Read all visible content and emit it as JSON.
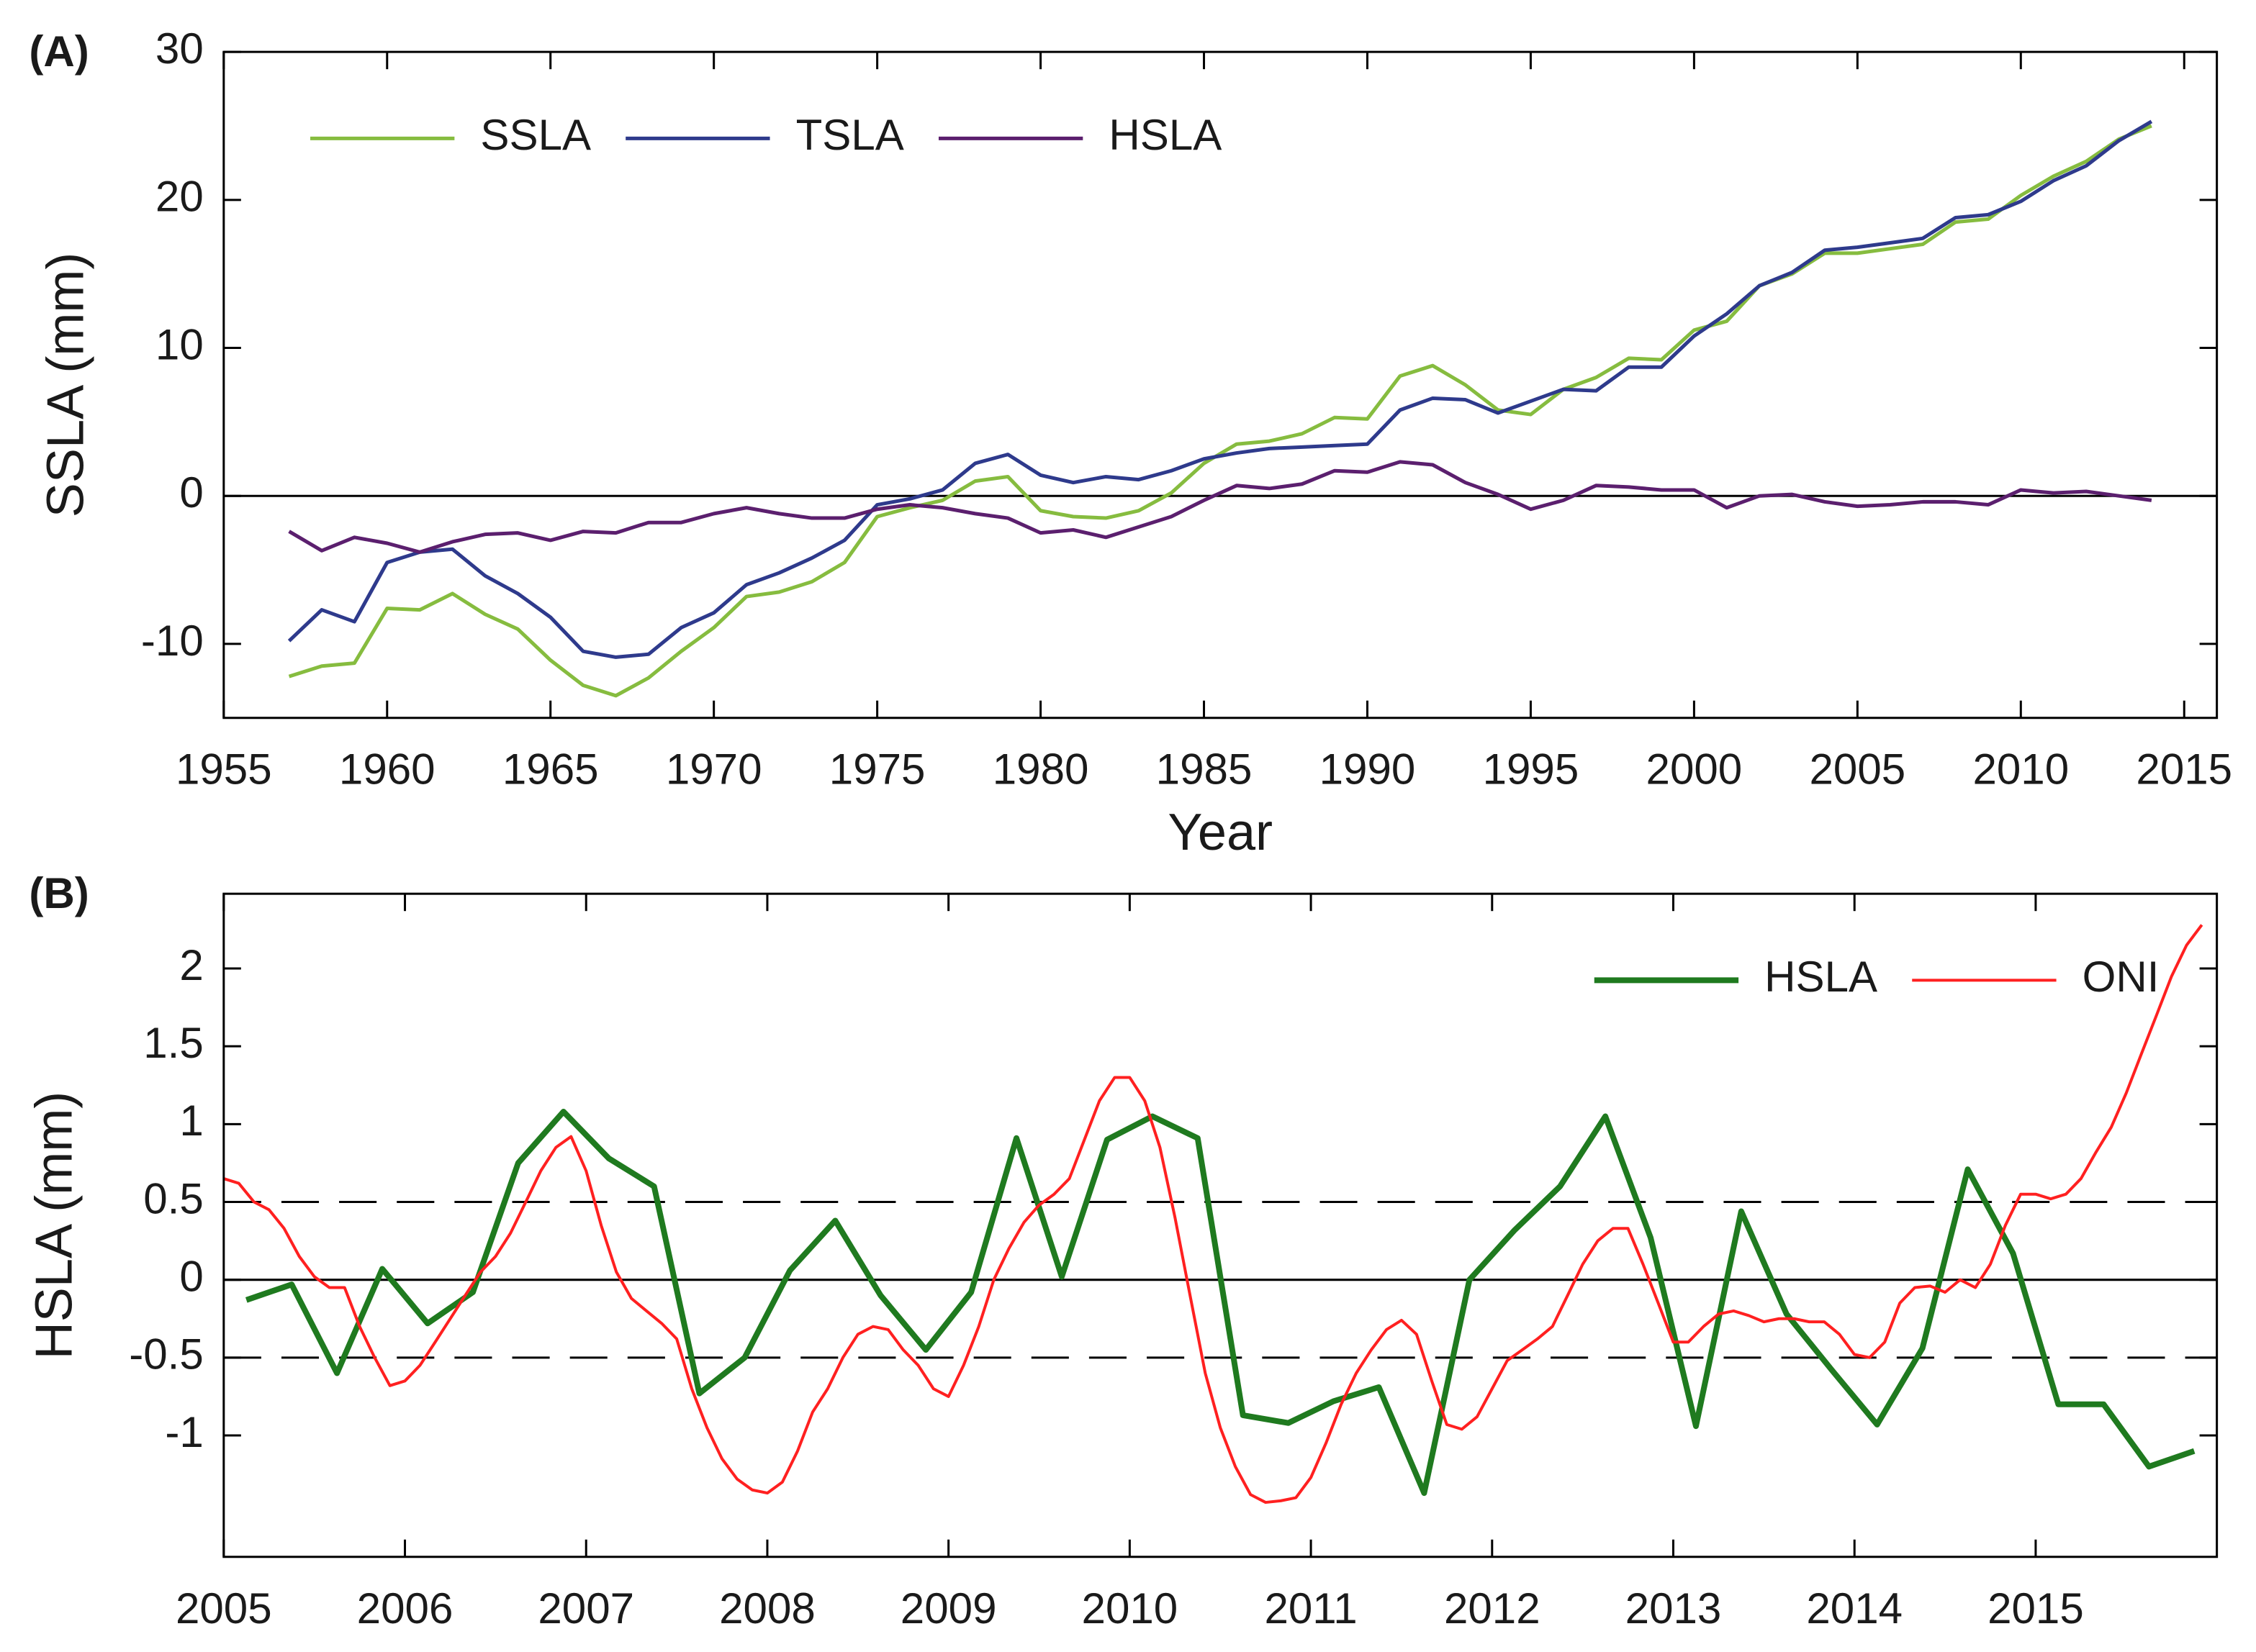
{
  "chart_data": [
    {
      "type": "line",
      "panel_label": "(A)",
      "xlabel": "Year",
      "ylabel": "SSLA (mm)",
      "x": [
        1957,
        1958,
        1959,
        1960,
        1961,
        1962,
        1963,
        1964,
        1965,
        1966,
        1967,
        1968,
        1969,
        1970,
        1971,
        1972,
        1973,
        1974,
        1975,
        1976,
        1977,
        1978,
        1979,
        1980,
        1981,
        1982,
        1983,
        1984,
        1985,
        1986,
        1987,
        1988,
        1989,
        1990,
        1991,
        1992,
        1993,
        1994,
        1995,
        1996,
        1997,
        1998,
        1999,
        2000,
        2001,
        2002,
        2003,
        2004,
        2005,
        2006,
        2007,
        2008,
        2009,
        2010,
        2011,
        2012,
        2013,
        2014
      ],
      "series": [
        {
          "name": "SSLA",
          "color": "#86bc3f",
          "linewidth": 2.5,
          "values": [
            -12.2,
            -11.5,
            -11.3,
            -7.6,
            -7.7,
            -6.6,
            -8.0,
            -9.0,
            -11.1,
            -12.8,
            -13.5,
            -12.3,
            -10.5,
            -8.9,
            -6.8,
            -6.5,
            -5.8,
            -4.5,
            -1.4,
            -0.8,
            -0.3,
            1.0,
            1.3,
            -1.0,
            -1.4,
            -1.5,
            -1.0,
            0.2,
            2.2,
            3.5,
            3.7,
            4.2,
            5.3,
            5.2,
            8.1,
            8.8,
            7.5,
            5.8,
            5.5,
            7.2,
            8.0,
            9.3,
            9.2,
            11.2,
            11.8,
            14.2,
            15.0,
            16.4,
            16.4,
            16.7,
            17.0,
            18.5,
            18.7,
            20.3,
            21.6,
            22.6,
            24.1,
            25.0
          ]
        },
        {
          "name": "TSLA",
          "color": "#2e3a8c",
          "linewidth": 2.5,
          "values": [
            -9.8,
            -7.7,
            -8.5,
            -4.5,
            -3.8,
            -3.6,
            -5.4,
            -6.6,
            -8.2,
            -10.5,
            -10.9,
            -10.7,
            -8.9,
            -7.9,
            -6.0,
            -5.2,
            -4.2,
            -3.0,
            -0.6,
            -0.2,
            0.4,
            2.2,
            2.8,
            1.4,
            0.9,
            1.3,
            1.1,
            1.7,
            2.5,
            2.9,
            3.2,
            3.3,
            3.4,
            3.5,
            5.8,
            6.6,
            6.5,
            5.6,
            6.4,
            7.2,
            7.1,
            8.7,
            8.7,
            10.8,
            12.3,
            14.2,
            15.1,
            16.6,
            16.8,
            17.1,
            17.4,
            18.8,
            19.0,
            19.9,
            21.3,
            22.3,
            24.0,
            25.3
          ]
        },
        {
          "name": "HSLA",
          "color": "#5b1f6e",
          "linewidth": 2.5,
          "values": [
            -2.4,
            -3.7,
            -2.8,
            -3.2,
            -3.8,
            -3.1,
            -2.6,
            -2.5,
            -3.0,
            -2.4,
            -2.5,
            -1.8,
            -1.8,
            -1.2,
            -0.8,
            -1.2,
            -1.5,
            -1.5,
            -0.9,
            -0.6,
            -0.8,
            -1.2,
            -1.5,
            -2.5,
            -2.3,
            -2.8,
            -2.1,
            -1.4,
            -0.3,
            0.7,
            0.5,
            0.8,
            1.7,
            1.6,
            2.3,
            2.1,
            0.9,
            0.1,
            -0.9,
            -0.3,
            0.7,
            0.6,
            0.4,
            0.4,
            -0.8,
            0.0,
            0.1,
            -0.4,
            -0.7,
            -0.6,
            -0.4,
            -0.4,
            -0.6,
            0.4,
            0.2,
            0.3,
            0.0,
            -0.3
          ]
        }
      ],
      "xlim": [
        1955,
        2016
      ],
      "xticks": [
        1955,
        1960,
        1965,
        1970,
        1975,
        1980,
        1985,
        1990,
        1995,
        2000,
        2005,
        2010,
        2015
      ],
      "ylim": [
        -15,
        30
      ],
      "yticks": [
        -10,
        0,
        10,
        20,
        30
      ],
      "reference_lines": [
        {
          "value": 0,
          "style": "solid"
        }
      ],
      "legend": "upper left"
    },
    {
      "type": "line",
      "panel_label": "(B)",
      "ylabel": "HSLA (mm)",
      "series": [
        {
          "name": "HSLA",
          "color": "#1f7a1f",
          "linewidth": 4,
          "x": [
            2005.125,
            2005.375,
            2005.625,
            2005.875,
            2006.125,
            2006.375,
            2006.625,
            2006.875,
            2007.125,
            2007.375,
            2007.625,
            2007.875,
            2008.125,
            2008.375,
            2008.625,
            2008.875,
            2009.125,
            2009.375,
            2009.625,
            2009.875,
            2010.125,
            2010.375,
            2010.625,
            2010.875,
            2011.125,
            2011.375,
            2011.625,
            2011.875,
            2012.125,
            2012.375,
            2012.625,
            2012.875,
            2013.125,
            2013.375,
            2013.625,
            2013.875,
            2014.125,
            2014.375,
            2014.625,
            2014.875,
            2015.125,
            2015.375,
            2015.625,
            2015.875
          ],
          "values": [
            -0.13,
            -0.03,
            -0.6,
            0.07,
            -0.28,
            -0.08,
            0.75,
            1.08,
            0.78,
            0.6,
            -0.73,
            -0.5,
            0.06,
            0.38,
            -0.1,
            -0.45,
            -0.08,
            0.91,
            0.02,
            0.9,
            1.05,
            0.91,
            -0.87,
            -0.92,
            -0.78,
            -0.69,
            -1.37,
            0.0,
            0.32,
            0.6,
            1.05,
            0.27,
            -0.94,
            0.44,
            -0.22,
            -0.58,
            -0.93,
            -0.44,
            0.71,
            0.17,
            -0.8,
            -0.8,
            -1.2,
            -1.1
          ]
        },
        {
          "name": "ONI",
          "color": "#ff2020",
          "linewidth": 2,
          "x": [
            2005.0,
            2005.083,
            2005.167,
            2005.25,
            2005.333,
            2005.417,
            2005.5,
            2005.583,
            2005.667,
            2005.75,
            2005.833,
            2005.917,
            2006.0,
            2006.083,
            2006.167,
            2006.25,
            2006.333,
            2006.417,
            2006.5,
            2006.583,
            2006.667,
            2006.75,
            2006.833,
            2006.917,
            2007.0,
            2007.083,
            2007.167,
            2007.25,
            2007.333,
            2007.417,
            2007.5,
            2007.583,
            2007.667,
            2007.75,
            2007.833,
            2007.917,
            2008.0,
            2008.083,
            2008.167,
            2008.25,
            2008.333,
            2008.417,
            2008.5,
            2008.583,
            2008.667,
            2008.75,
            2008.833,
            2008.917,
            2009.0,
            2009.083,
            2009.167,
            2009.25,
            2009.333,
            2009.417,
            2009.5,
            2009.583,
            2009.667,
            2009.75,
            2009.833,
            2009.917,
            2010.0,
            2010.083,
            2010.167,
            2010.25,
            2010.333,
            2010.417,
            2010.5,
            2010.583,
            2010.667,
            2010.75,
            2010.833,
            2010.917,
            2011.0,
            2011.083,
            2011.167,
            2011.25,
            2011.333,
            2011.417,
            2011.5,
            2011.583,
            2011.667,
            2011.75,
            2011.833,
            2011.917,
            2012.0,
            2012.083,
            2012.167,
            2012.25,
            2012.333,
            2012.417,
            2012.5,
            2012.583,
            2012.667,
            2012.75,
            2012.833,
            2012.917,
            2013.0,
            2013.083,
            2013.167,
            2013.25,
            2013.333,
            2013.417,
            2013.5,
            2013.583,
            2013.667,
            2013.75,
            2013.833,
            2013.917,
            2014.0,
            2014.083,
            2014.167,
            2014.25,
            2014.333,
            2014.417,
            2014.5,
            2014.583,
            2014.667,
            2014.75,
            2014.833,
            2014.917,
            2015.0,
            2015.083,
            2015.167,
            2015.25,
            2015.333,
            2015.417,
            2015.5,
            2015.583,
            2015.667,
            2015.75,
            2015.833,
            2015.917
          ],
          "values": [
            0.65,
            0.62,
            0.5,
            0.45,
            0.33,
            0.15,
            0.02,
            -0.05,
            -0.05,
            -0.3,
            -0.5,
            -0.68,
            -0.65,
            -0.55,
            -0.4,
            -0.25,
            -0.1,
            0.05,
            0.15,
            0.3,
            0.5,
            0.7,
            0.85,
            0.92,
            0.7,
            0.35,
            0.05,
            -0.12,
            -0.2,
            -0.28,
            -0.38,
            -0.7,
            -0.95,
            -1.15,
            -1.28,
            -1.35,
            -1.37,
            -1.3,
            -1.1,
            -0.85,
            -0.7,
            -0.5,
            -0.35,
            -0.3,
            -0.32,
            -0.45,
            -0.55,
            -0.7,
            -0.75,
            -0.55,
            -0.3,
            0.0,
            0.2,
            0.37,
            0.48,
            0.55,
            0.65,
            0.9,
            1.15,
            1.3,
            1.3,
            1.15,
            0.85,
            0.4,
            -0.1,
            -0.6,
            -0.95,
            -1.2,
            -1.38,
            -1.43,
            -1.42,
            -1.4,
            -1.27,
            -1.05,
            -0.8,
            -0.6,
            -0.45,
            -0.32,
            -0.26,
            -0.35,
            -0.65,
            -0.93,
            -0.96,
            -0.88,
            -0.7,
            -0.52,
            -0.45,
            -0.38,
            -0.3,
            -0.1,
            0.1,
            0.25,
            0.33,
            0.33,
            0.1,
            -0.15,
            -0.4,
            -0.4,
            -0.3,
            -0.22,
            -0.2,
            -0.23,
            -0.27,
            -0.25,
            -0.25,
            -0.27,
            -0.27,
            -0.35,
            -0.48,
            -0.5,
            -0.4,
            -0.15,
            -0.05,
            -0.04,
            -0.08,
            0.0,
            -0.05,
            0.1,
            0.35,
            0.55,
            0.55,
            0.52,
            0.55,
            0.65,
            0.82,
            0.98,
            1.2,
            1.45,
            1.7,
            1.95,
            2.15,
            2.28
          ]
        }
      ],
      "xlim": [
        2005,
        2016
      ],
      "xticks": [
        2005,
        2006,
        2007,
        2008,
        2009,
        2010,
        2011,
        2012,
        2013,
        2014,
        2015
      ],
      "ylim": [
        -1.78,
        2.48
      ],
      "yticks": [
        -1,
        -0.5,
        0,
        0.5,
        1,
        1.5,
        2
      ],
      "reference_lines": [
        {
          "value": 0,
          "style": "solid"
        },
        {
          "value": 0.5,
          "style": "dashed"
        },
        {
          "value": -0.5,
          "style": "dashed"
        }
      ],
      "legend": "upper right"
    }
  ]
}
